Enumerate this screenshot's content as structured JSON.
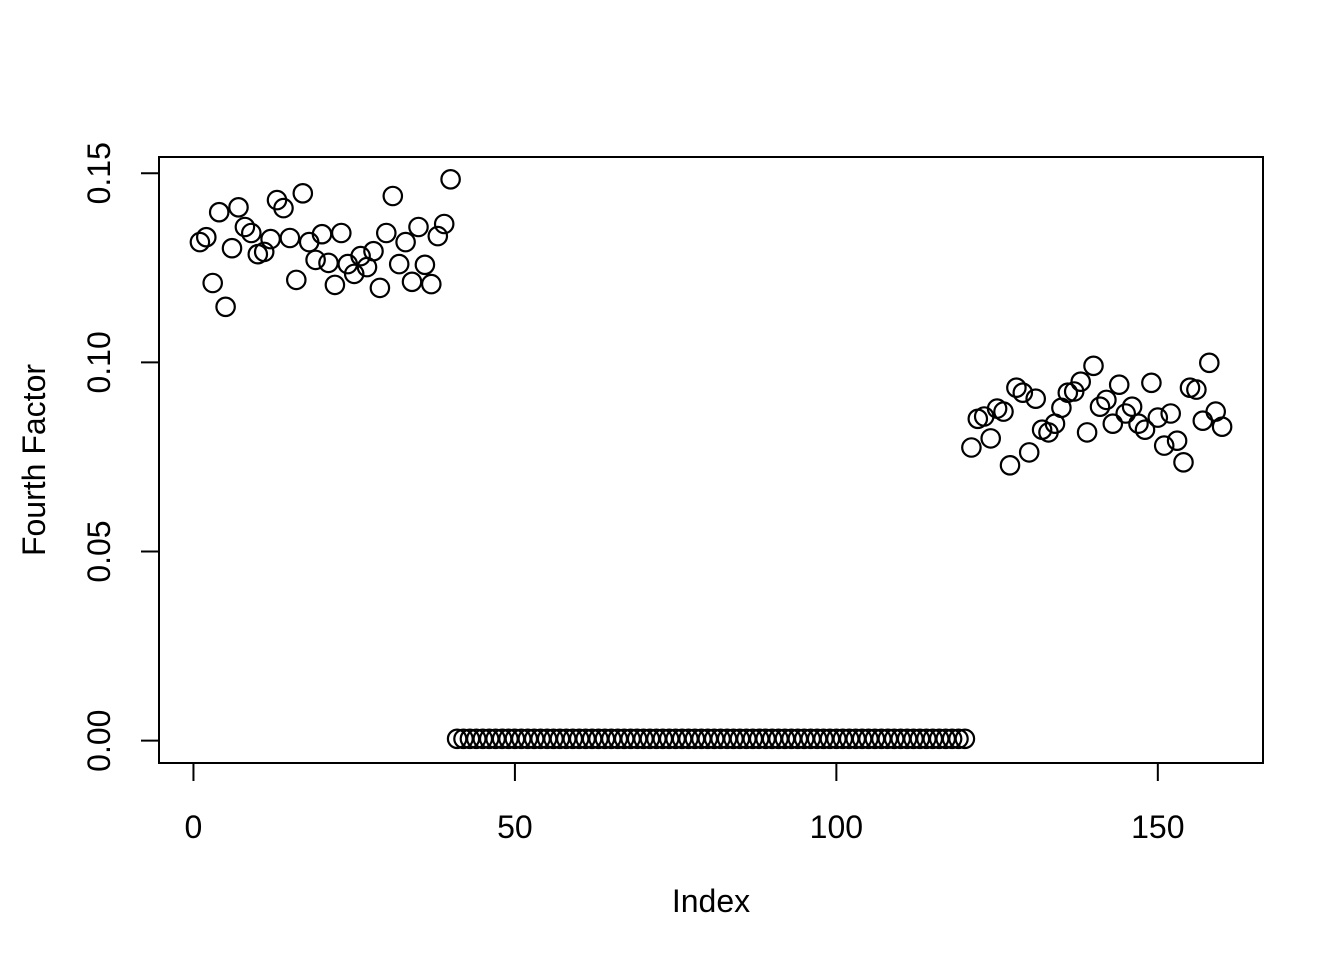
{
  "figure": {
    "background_color": "#ffffff",
    "foreground_color": "#000000",
    "marker": "open-circle"
  },
  "chart_data": {
    "type": "scatter",
    "title": "",
    "xlabel": "Index",
    "ylabel": "Fourth Factor",
    "x_ticks": [
      0,
      50,
      100,
      150
    ],
    "y_tick_labels": [
      "0.00",
      "0.05",
      "0.10",
      "0.15"
    ],
    "xlim": [
      -5.36,
      166.36
    ],
    "ylim": [
      -0.0059,
      0.1543
    ],
    "grid": false,
    "legend_position": "none",
    "point_style": {
      "shape": "open-circle",
      "color": "#000000",
      "radius_px": 9.2,
      "stroke_px": 2.2
    },
    "series": [
      {
        "name": "Fourth Factor",
        "points": [
          [
            1,
            0.1318
          ],
          [
            2,
            0.1331
          ],
          [
            3,
            0.121
          ],
          [
            4,
            0.1397
          ],
          [
            5,
            0.1147
          ],
          [
            6,
            0.1302
          ],
          [
            7,
            0.141
          ],
          [
            8,
            0.1358
          ],
          [
            9,
            0.1342
          ],
          [
            10,
            0.1286
          ],
          [
            11,
            0.1292
          ],
          [
            12,
            0.1326
          ],
          [
            13,
            0.1429
          ],
          [
            14,
            0.1408
          ],
          [
            15,
            0.1329
          ],
          [
            16,
            0.1218
          ],
          [
            17,
            0.1447
          ],
          [
            18,
            0.1318
          ],
          [
            19,
            0.1271
          ],
          [
            20,
            0.1339
          ],
          [
            21,
            0.1263
          ],
          [
            22,
            0.1205
          ],
          [
            23,
            0.1342
          ],
          [
            24,
            0.126
          ],
          [
            25,
            0.1234
          ],
          [
            26,
            0.1281
          ],
          [
            27,
            0.1252
          ],
          [
            28,
            0.1294
          ],
          [
            29,
            0.1197
          ],
          [
            30,
            0.1342
          ],
          [
            31,
            0.144
          ],
          [
            32,
            0.126
          ],
          [
            33,
            0.1318
          ],
          [
            34,
            0.1213
          ],
          [
            35,
            0.1358
          ],
          [
            36,
            0.1258
          ],
          [
            37,
            0.1207
          ],
          [
            38,
            0.1334
          ],
          [
            39,
            0.1366
          ],
          [
            40,
            0.1484
          ],
          [
            41,
            0.0005
          ],
          [
            42,
            0.0005
          ],
          [
            43,
            0.0005
          ],
          [
            44,
            0.0005
          ],
          [
            45,
            0.0005
          ],
          [
            46,
            0.0005
          ],
          [
            47,
            0.0005
          ],
          [
            48,
            0.0005
          ],
          [
            49,
            0.0005
          ],
          [
            50,
            0.0005
          ],
          [
            51,
            0.0005
          ],
          [
            52,
            0.0005
          ],
          [
            53,
            0.0005
          ],
          [
            54,
            0.0005
          ],
          [
            55,
            0.0005
          ],
          [
            56,
            0.0005
          ],
          [
            57,
            0.0005
          ],
          [
            58,
            0.0005
          ],
          [
            59,
            0.0005
          ],
          [
            60,
            0.0005
          ],
          [
            61,
            0.0005
          ],
          [
            62,
            0.0005
          ],
          [
            63,
            0.0005
          ],
          [
            64,
            0.0005
          ],
          [
            65,
            0.0005
          ],
          [
            66,
            0.0005
          ],
          [
            67,
            0.0005
          ],
          [
            68,
            0.0005
          ],
          [
            69,
            0.0005
          ],
          [
            70,
            0.0005
          ],
          [
            71,
            0.0005
          ],
          [
            72,
            0.0005
          ],
          [
            73,
            0.0005
          ],
          [
            74,
            0.0005
          ],
          [
            75,
            0.0005
          ],
          [
            76,
            0.0005
          ],
          [
            77,
            0.0005
          ],
          [
            78,
            0.0005
          ],
          [
            79,
            0.0005
          ],
          [
            80,
            0.0005
          ],
          [
            81,
            0.0005
          ],
          [
            82,
            0.0005
          ],
          [
            83,
            0.0005
          ],
          [
            84,
            0.0005
          ],
          [
            85,
            0.0005
          ],
          [
            86,
            0.0005
          ],
          [
            87,
            0.0005
          ],
          [
            88,
            0.0005
          ],
          [
            89,
            0.0005
          ],
          [
            90,
            0.0005
          ],
          [
            91,
            0.0005
          ],
          [
            92,
            0.0005
          ],
          [
            93,
            0.0005
          ],
          [
            94,
            0.0005
          ],
          [
            95,
            0.0005
          ],
          [
            96,
            0.0005
          ],
          [
            97,
            0.0005
          ],
          [
            98,
            0.0005
          ],
          [
            99,
            0.0005
          ],
          [
            100,
            0.0005
          ],
          [
            101,
            0.0005
          ],
          [
            102,
            0.0005
          ],
          [
            103,
            0.0005
          ],
          [
            104,
            0.0005
          ],
          [
            105,
            0.0005
          ],
          [
            106,
            0.0005
          ],
          [
            107,
            0.0005
          ],
          [
            108,
            0.0005
          ],
          [
            109,
            0.0005
          ],
          [
            110,
            0.0005
          ],
          [
            111,
            0.0005
          ],
          [
            112,
            0.0005
          ],
          [
            113,
            0.0005
          ],
          [
            114,
            0.0005
          ],
          [
            115,
            0.0005
          ],
          [
            116,
            0.0005
          ],
          [
            117,
            0.0005
          ],
          [
            118,
            0.0005
          ],
          [
            119,
            0.0005
          ],
          [
            120,
            0.0005
          ],
          [
            121,
            0.0775
          ],
          [
            122,
            0.0851
          ],
          [
            123,
            0.0857
          ],
          [
            124,
            0.0799
          ],
          [
            125,
            0.0878
          ],
          [
            126,
            0.087
          ],
          [
            127,
            0.0728
          ],
          [
            128,
            0.0933
          ],
          [
            129,
            0.092
          ],
          [
            130,
            0.0762
          ],
          [
            131,
            0.0904
          ],
          [
            132,
            0.0822
          ],
          [
            133,
            0.0815
          ],
          [
            134,
            0.0838
          ],
          [
            135,
            0.088
          ],
          [
            136,
            0.092
          ],
          [
            137,
            0.0923
          ],
          [
            138,
            0.0949
          ],
          [
            139,
            0.0815
          ],
          [
            140,
            0.0991
          ],
          [
            141,
            0.0883
          ],
          [
            142,
            0.0901
          ],
          [
            143,
            0.0838
          ],
          [
            144,
            0.0941
          ],
          [
            145,
            0.0865
          ],
          [
            146,
            0.0883
          ],
          [
            147,
            0.0838
          ],
          [
            148,
            0.0822
          ],
          [
            149,
            0.0946
          ],
          [
            150,
            0.0854
          ],
          [
            151,
            0.078
          ],
          [
            152,
            0.0865
          ],
          [
            153,
            0.0793
          ],
          [
            154,
            0.0736
          ],
          [
            155,
            0.0933
          ],
          [
            156,
            0.0928
          ],
          [
            157,
            0.0846
          ],
          [
            158,
            0.0999
          ],
          [
            159,
            0.087
          ],
          [
            160,
            0.083
          ]
        ]
      }
    ]
  }
}
